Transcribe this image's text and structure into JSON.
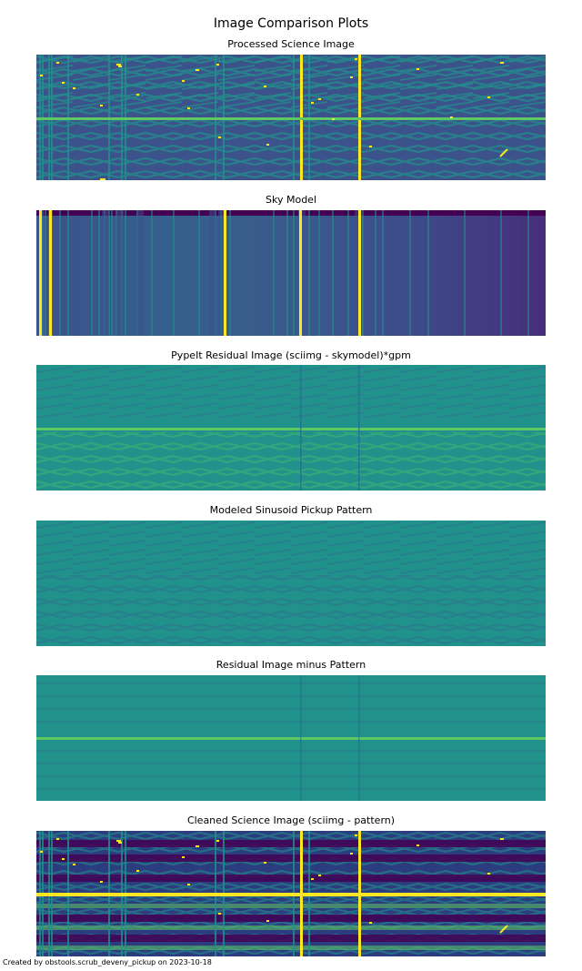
{
  "figure": {
    "title": "Image Comparison Plots",
    "footer": "Created by obstools.scrub_deveny_pickup on 2023-10-18"
  },
  "colormap": {
    "name": "viridis",
    "stops": [
      "#440154",
      "#3b528b",
      "#21918c",
      "#5ec962",
      "#fde725"
    ]
  },
  "chart_data": [
    {
      "type": "heatmap",
      "id": "science",
      "title": "Processed Science Image"
    },
    {
      "type": "heatmap",
      "id": "sky",
      "title": "Sky Model"
    },
    {
      "type": "heatmap",
      "id": "residual",
      "title": "PypeIt Residual Image (sciimg - skymodel)*gpm"
    },
    {
      "type": "heatmap",
      "id": "pattern",
      "title": "Modeled Sinusoid Pickup Pattern"
    },
    {
      "type": "heatmap",
      "id": "resid-minus",
      "title": "Residual Image minus Pattern"
    },
    {
      "type": "heatmap",
      "id": "cleaned",
      "title": "Cleaned Science Image (sciimg - pattern)"
    }
  ]
}
